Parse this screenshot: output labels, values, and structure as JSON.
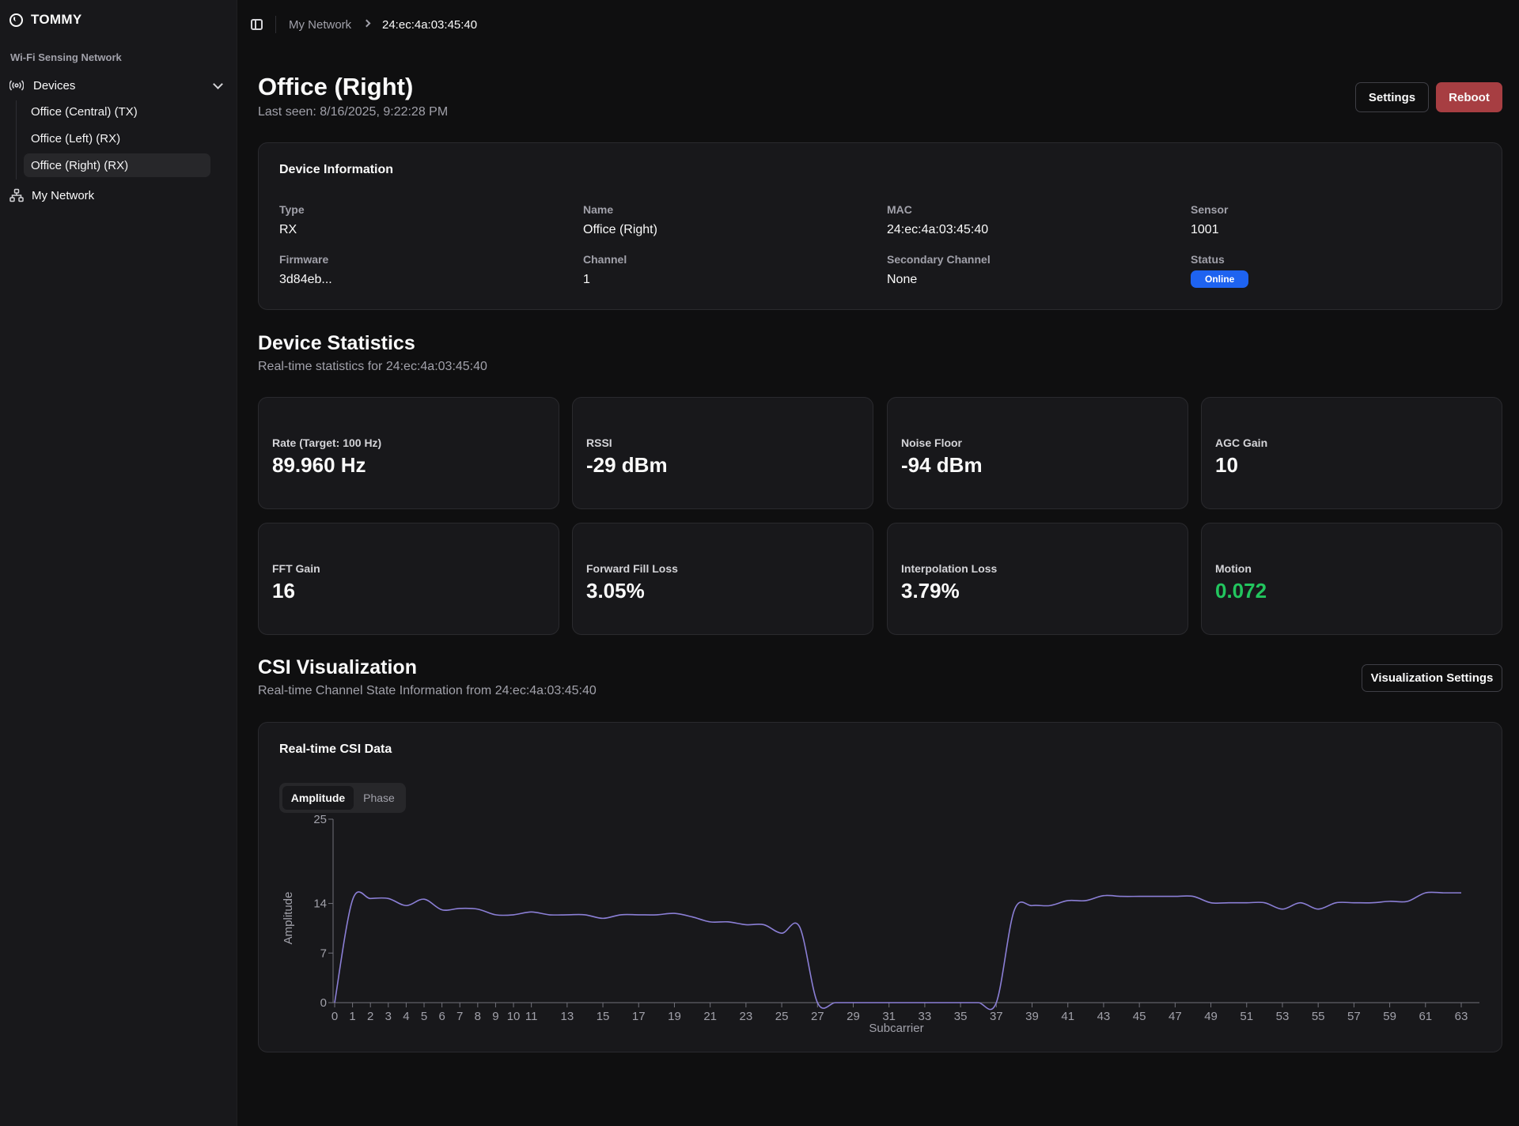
{
  "app": {
    "brand": "TOMMY"
  },
  "sidebar": {
    "group_label": "Wi-Fi Sensing Network",
    "devices_label": "Devices",
    "devices": [
      {
        "label": "Office (Central) (TX)",
        "active": false
      },
      {
        "label": "Office (Left) (RX)",
        "active": false
      },
      {
        "label": "Office (Right) (RX)",
        "active": true
      }
    ],
    "network_label": "My Network"
  },
  "breadcrumb": {
    "parent": "My Network",
    "current": "24:ec:4a:03:45:40"
  },
  "header": {
    "title": "Office (Right)",
    "last_seen": "Last seen: 8/16/2025, 9:22:28 PM",
    "settings_label": "Settings",
    "reboot_label": "Reboot"
  },
  "device_info": {
    "title": "Device Information",
    "fields": [
      {
        "key": "Type",
        "value": "RX"
      },
      {
        "key": "Name",
        "value": "Office (Right)"
      },
      {
        "key": "MAC",
        "value": "24:ec:4a:03:45:40"
      },
      {
        "key": "Sensor",
        "value": "1001"
      },
      {
        "key": "Firmware",
        "value": "3d84eb..."
      },
      {
        "key": "Channel",
        "value": "1"
      },
      {
        "key": "Secondary Channel",
        "value": "None"
      },
      {
        "key": "Status",
        "value": "Online"
      }
    ]
  },
  "statistics": {
    "title": "Device Statistics",
    "subtitle": "Real-time statistics for 24:ec:4a:03:45:40",
    "cards": [
      {
        "label": "Rate (Target: 100 Hz)",
        "value": "89.960 Hz"
      },
      {
        "label": "RSSI",
        "value": "-29 dBm"
      },
      {
        "label": "Noise Floor",
        "value": "-94 dBm"
      },
      {
        "label": "AGC Gain",
        "value": "10"
      },
      {
        "label": "FFT Gain",
        "value": "16"
      },
      {
        "label": "Forward Fill Loss",
        "value": "3.05%"
      },
      {
        "label": "Interpolation Loss",
        "value": "3.79%"
      },
      {
        "label": "Motion",
        "value": "0.072"
      }
    ],
    "motion_color": "#22c55e"
  },
  "csi": {
    "title": "CSI Visualization",
    "subtitle": "Real-time Channel State Information from 24:ec:4a:03:45:40",
    "settings_label": "Visualization Settings",
    "card_title": "Real-time CSI Data",
    "tabs": [
      "Amplitude",
      "Phase"
    ],
    "active_tab": "Amplitude"
  },
  "chart_data": {
    "type": "line",
    "xlabel": "Subcarrier",
    "ylabel": "Amplitude",
    "ylim": [
      0,
      25
    ],
    "yticks": [
      0,
      7,
      14,
      25
    ],
    "xticks": [
      0,
      1,
      2,
      3,
      4,
      5,
      6,
      7,
      8,
      9,
      10,
      11,
      13,
      15,
      17,
      19,
      21,
      23,
      25,
      27,
      29,
      31,
      33,
      35,
      37,
      39,
      41,
      43,
      45,
      47,
      49,
      51,
      53,
      55,
      57,
      59,
      61,
      63
    ],
    "line_color": "#8b7fd6",
    "series": [
      {
        "x": [
          0,
          1,
          2,
          3,
          4,
          5,
          6,
          7,
          8,
          9,
          10,
          11,
          12,
          13,
          14,
          15,
          16,
          17,
          18,
          19,
          20,
          21,
          22,
          23,
          24,
          25,
          26,
          27,
          28,
          29,
          30,
          31,
          32,
          33,
          34,
          35,
          36,
          37,
          38,
          39,
          40,
          41,
          42,
          43,
          44,
          45,
          46,
          47,
          48,
          49,
          50,
          51,
          52,
          53,
          54,
          55,
          56,
          57,
          58,
          59,
          60,
          61,
          62,
          63
        ],
        "values": [
          0,
          14.5,
          14.7,
          14.7,
          13.7,
          14.6,
          13.1,
          13.3,
          13.2,
          12.4,
          12.4,
          12.8,
          12.4,
          12.4,
          12.4,
          11.9,
          12.4,
          12.4,
          12.4,
          12.6,
          12.1,
          11.4,
          11.4,
          11.0,
          11.0,
          9.8,
          10.7,
          0,
          0,
          0,
          0,
          0,
          0,
          0,
          0,
          0,
          0,
          0,
          13.0,
          13.7,
          13.7,
          14.4,
          14.4,
          15.1,
          15.0,
          15.0,
          15.0,
          15.0,
          15.0,
          14.1,
          14.1,
          14.1,
          14.1,
          13.2,
          14.1,
          13.2,
          14.1,
          14.1,
          14.1,
          14.3,
          14.3,
          15.5,
          15.5,
          15.5
        ]
      }
    ]
  }
}
